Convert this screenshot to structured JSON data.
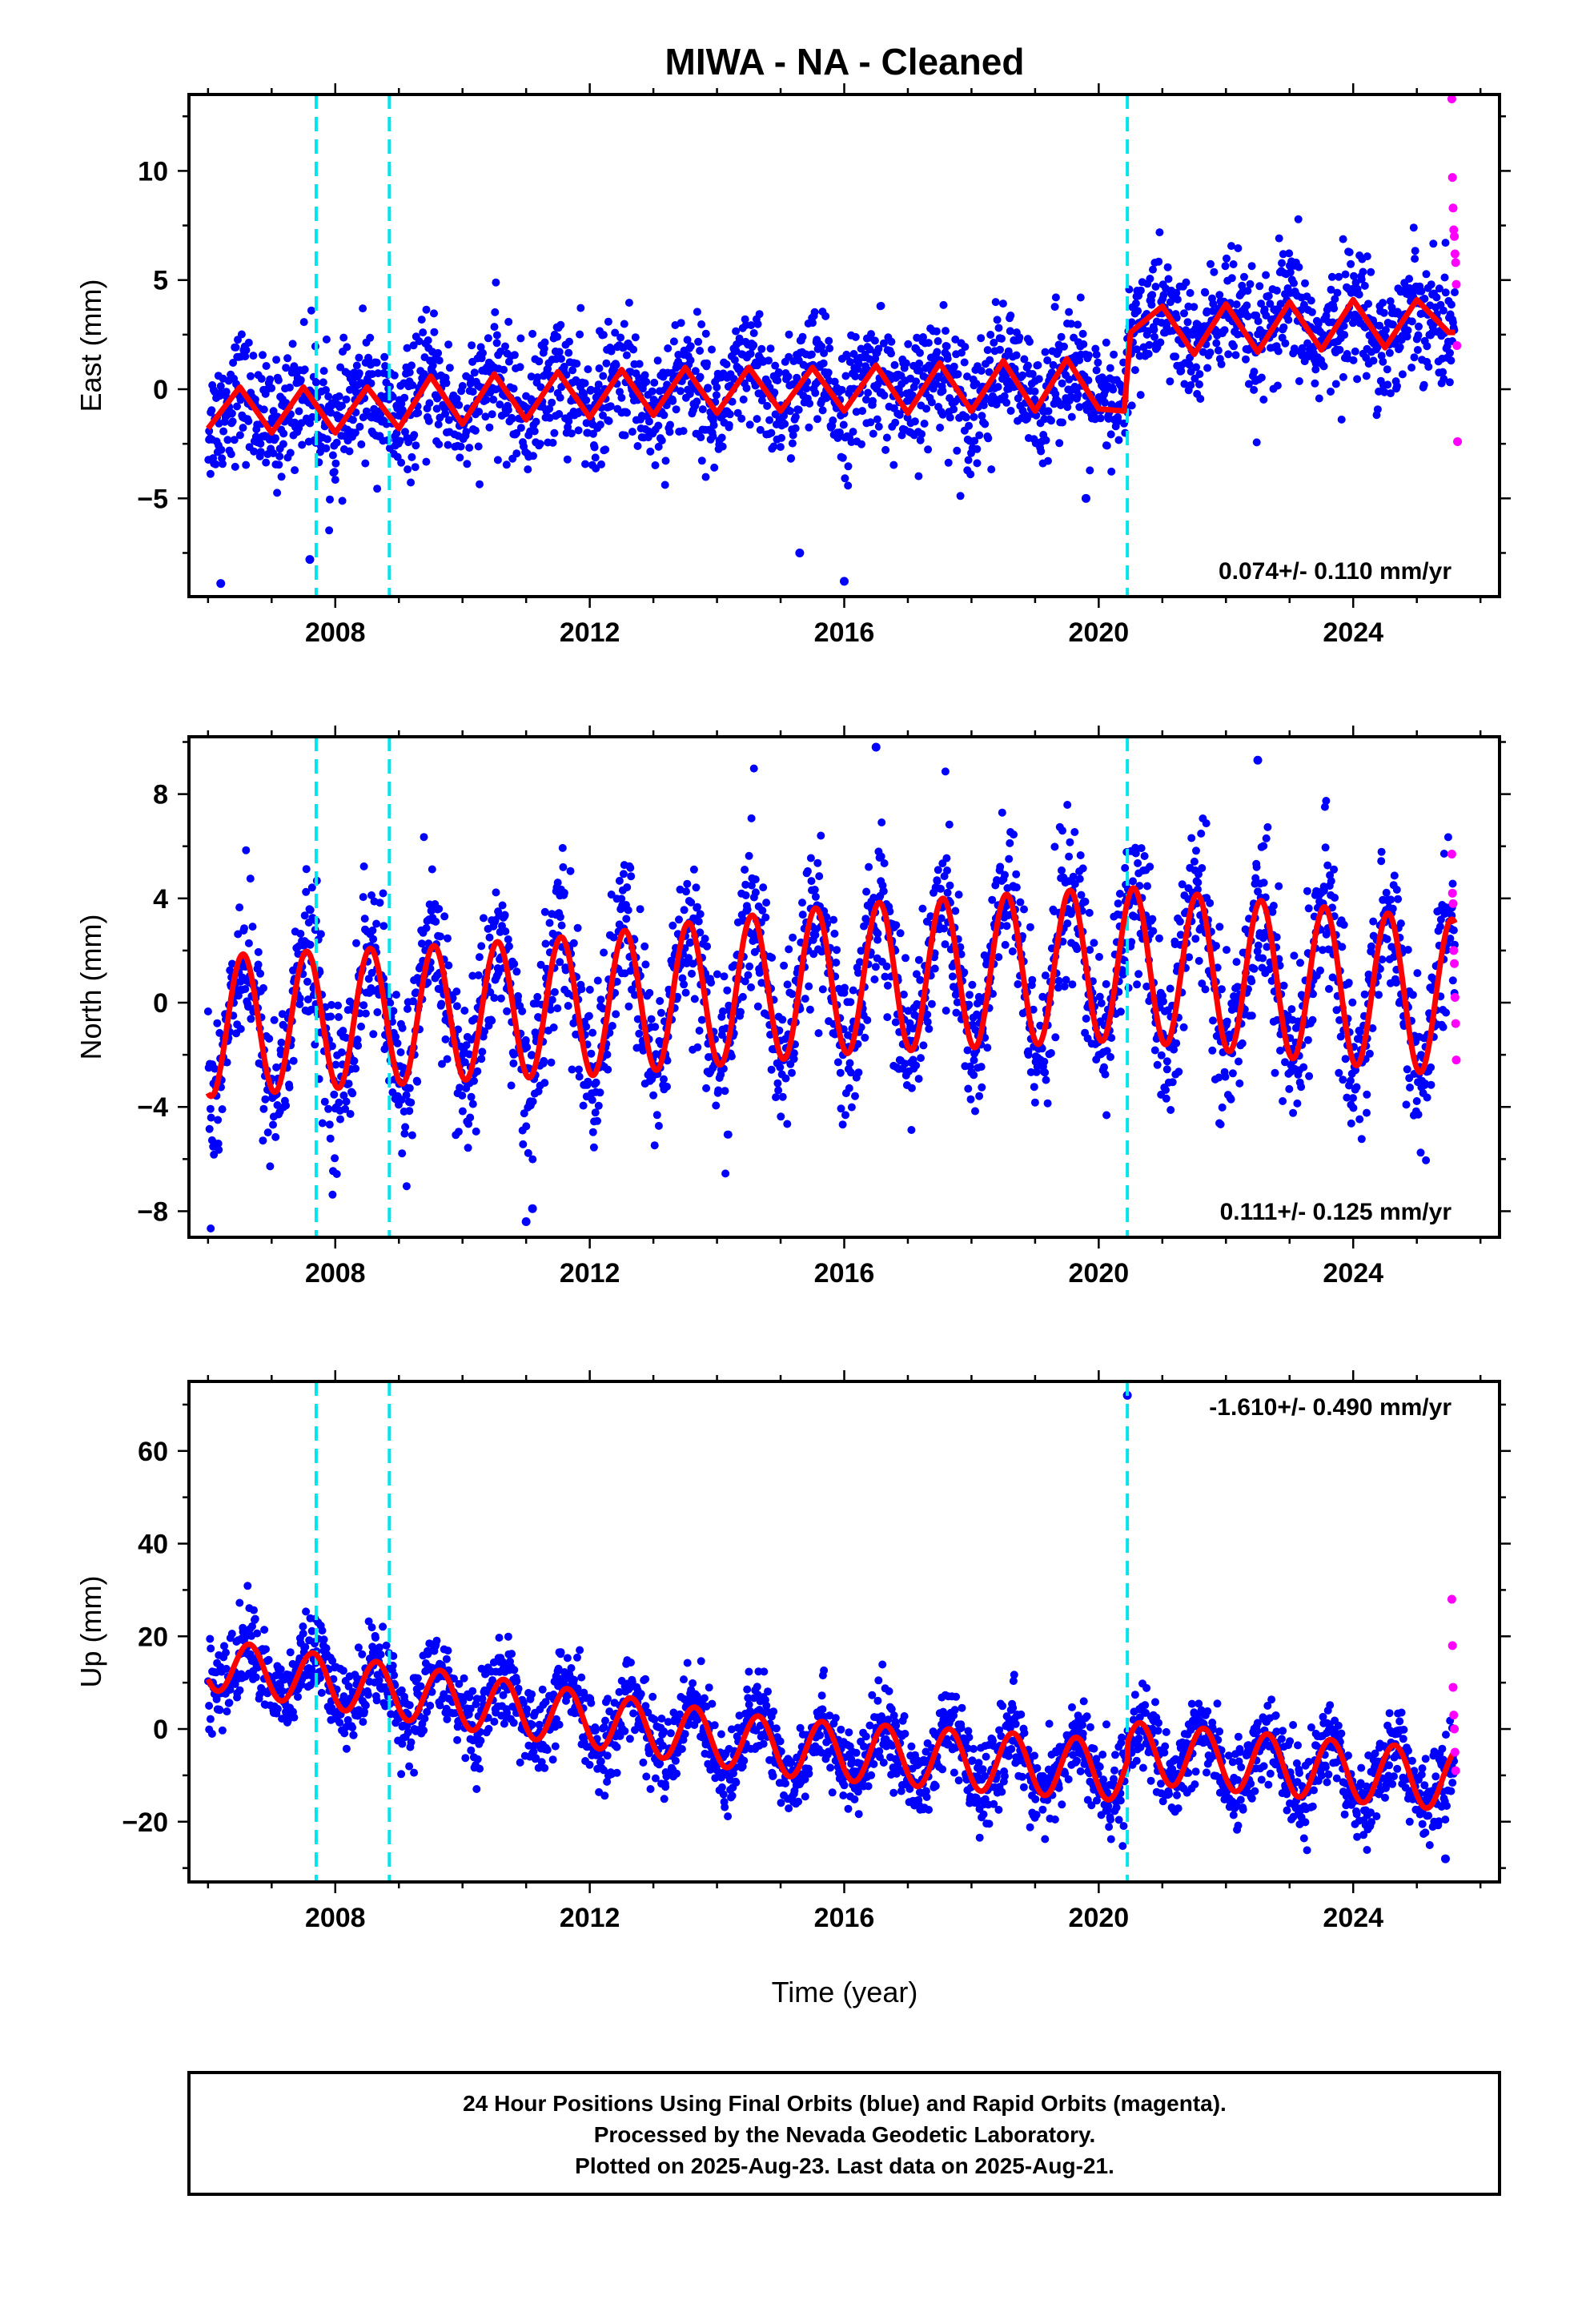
{
  "title": "MIWA  - NA - Cleaned",
  "xlabel": "Time (year)",
  "footer": {
    "line1": "24 Hour Positions Using Final Orbits (blue) and Rapid Orbits (magenta).",
    "line2": "Processed by the Nevada Geodetic Laboratory.",
    "line3": "Plotted on 2025-Aug-23. Last data on 2025-Aug-21."
  },
  "colors": {
    "final_orbits": "#0000ff",
    "rapid_orbits": "#ff00ff",
    "model_fit": "#ff0000",
    "offset_lines": "#00e5ee"
  },
  "chart_data": [
    {
      "type": "scatter",
      "component": "east",
      "ylabel": "East (mm)",
      "xlim": [
        2005.7,
        2026.3
      ],
      "ylim": [
        -9.5,
        13.5
      ],
      "xticks": [
        2008,
        2012,
        2016,
        2020,
        2024
      ],
      "yticks": [
        -5,
        0,
        5,
        10
      ],
      "rate_label": "0.074+/- 0.110 mm/yr",
      "rate_position": "bottom-right",
      "offset_lines_x": [
        2007.7,
        2008.85,
        2020.45
      ],
      "model": {
        "x": [
          2006.0,
          2006.5,
          2007.0,
          2007.5,
          2008.0,
          2008.5,
          2009.0,
          2009.5,
          2010.0,
          2010.5,
          2011.0,
          2011.5,
          2012.0,
          2012.5,
          2013.0,
          2013.5,
          2014.0,
          2014.5,
          2015.0,
          2015.5,
          2016.0,
          2016.5,
          2017.0,
          2017.5,
          2018.0,
          2018.5,
          2019.0,
          2019.5,
          2020.0,
          2020.4,
          2020.5,
          2021.0,
          2021.5,
          2022.0,
          2022.5,
          2023.0,
          2023.5,
          2024.0,
          2024.5,
          2025.0,
          2025.5
        ],
        "y": [
          -1.8,
          0.1,
          -2.0,
          0.1,
          -2.0,
          0.1,
          -1.8,
          0.6,
          -1.6,
          0.7,
          -1.4,
          0.8,
          -1.3,
          0.9,
          -1.2,
          1.0,
          -1.1,
          1.0,
          -1.0,
          1.0,
          -1.0,
          1.1,
          -1.1,
          1.2,
          -1.0,
          1.3,
          -1.0,
          1.4,
          -0.9,
          -1.0,
          2.6,
          3.8,
          1.6,
          3.9,
          1.7,
          4.0,
          1.8,
          4.1,
          1.9,
          4.1,
          2.6
        ]
      },
      "final_orbits_range": {
        "x": [
          2006.0,
          2025.6
        ],
        "spread": 1.4
      },
      "rapid_orbits": {
        "x": [
          2025.55,
          2025.56,
          2025.57,
          2025.58,
          2025.59,
          2025.6,
          2025.61,
          2025.62,
          2025.63,
          2025.64
        ],
        "y": [
          13.3,
          9.7,
          8.3,
          7.3,
          7.0,
          6.2,
          5.8,
          4.8,
          2.0,
          -2.4
        ]
      },
      "outliers": {
        "x": [
          2006.2,
          2007.6,
          2015.3,
          2016.0,
          2019.8
        ],
        "y": [
          -8.9,
          -7.8,
          -7.5,
          -8.8,
          -5.0
        ]
      }
    },
    {
      "type": "scatter",
      "component": "north",
      "ylabel": "North (mm)",
      "xlim": [
        2005.7,
        2026.3
      ],
      "ylim": [
        -9.0,
        10.2
      ],
      "xticks": [
        2008,
        2012,
        2016,
        2020,
        2024
      ],
      "yticks": [
        -8,
        -4,
        0,
        4,
        8
      ],
      "rate_label": "0.111+/- 0.125 mm/yr",
      "rate_position": "bottom-right",
      "offset_lines_x": [
        2007.7,
        2008.85,
        2020.45
      ],
      "model": {
        "amplitude": [
          2.7,
          2.6,
          2.8,
          2.9,
          3.0
        ],
        "amplitude_years": [
          2006,
          2010,
          2014,
          2018,
          2025.5
        ],
        "mean": [
          -0.9,
          -0.1,
          0.9,
          1.5,
          0.2
        ],
        "mean_years": [
          2006,
          2012,
          2016,
          2020.4,
          2025.5
        ],
        "peak_phase": 0.55
      },
      "final_orbits_range": {
        "x": [
          2006.0,
          2025.6
        ],
        "spread": 1.5
      },
      "rapid_orbits": {
        "x": [
          2025.55,
          2025.56,
          2025.57,
          2025.58,
          2025.59,
          2025.6,
          2025.61,
          2025.62
        ],
        "y": [
          5.7,
          4.2,
          3.8,
          2.0,
          1.5,
          0.2,
          -0.8,
          -2.2
        ]
      },
      "outliers": {
        "x": [
          2011.0,
          2011.1,
          2016.5,
          2022.5
        ],
        "y": [
          -8.4,
          -7.9,
          9.8,
          9.3
        ]
      }
    },
    {
      "type": "scatter",
      "component": "up",
      "ylabel": "Up (mm)",
      "xlim": [
        2005.7,
        2026.3
      ],
      "ylim": [
        -33,
        75
      ],
      "xticks": [
        2008,
        2012,
        2016,
        2020,
        2024
      ],
      "yticks": [
        -20,
        0,
        20,
        40,
        60
      ],
      "rate_label": "-1.610+/- 0.490 mm/yr",
      "rate_position": "top-right",
      "offset_lines_x": [
        2007.7,
        2008.85,
        2020.45
      ],
      "model": {
        "amplitude": [
          5.5,
          6.0,
          6.0,
          6.5,
          6.5
        ],
        "amplitude_years": [
          2006,
          2010,
          2014,
          2018,
          2025.5
        ],
        "mean": [
          14,
          4,
          -4,
          -9,
          -5,
          -11
        ],
        "mean_years": [
          2006,
          2011,
          2015,
          2020.4,
          2020.5,
          2025.5
        ],
        "peak_phase": 0.65
      },
      "final_orbits_range": {
        "x": [
          2006.0,
          2025.6
        ],
        "spread": 4.5
      },
      "rapid_orbits": {
        "x": [
          2025.55,
          2025.56,
          2025.57,
          2025.58,
          2025.59,
          2025.6,
          2025.61
        ],
        "y": [
          28,
          18,
          9,
          3,
          0,
          -5,
          -9
        ]
      },
      "outliers": {
        "x": [
          2020.45,
          2025.45
        ],
        "y": [
          72,
          -28
        ]
      }
    }
  ]
}
